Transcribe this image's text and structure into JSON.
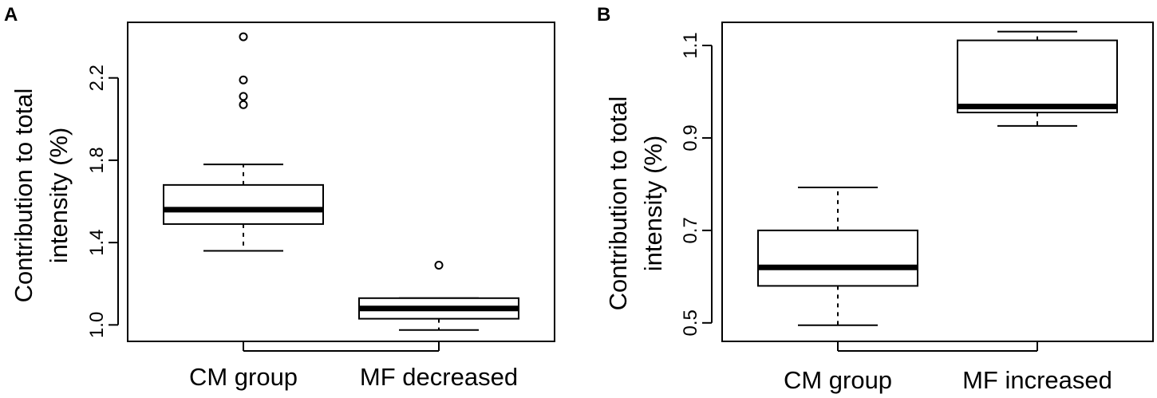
{
  "chart_data": [
    {
      "panel": "A",
      "type": "box",
      "ylabel_lines": [
        "Contribution to total",
        "intensity (%)"
      ],
      "categories": [
        "CM group",
        "MF decreased"
      ],
      "yticks": [
        1.0,
        1.4,
        1.8,
        2.2
      ],
      "ytick_labels": [
        "1.0",
        "1.4",
        "1.8",
        "2.2"
      ],
      "ylim": [
        0.92,
        2.47
      ],
      "boxes": [
        {
          "category": "CM group",
          "whisker_low": 1.36,
          "q1": 1.49,
          "median": 1.56,
          "q3": 1.68,
          "whisker_high": 1.78,
          "outliers": [
            2.07,
            2.11,
            2.19,
            2.4
          ]
        },
        {
          "category": "MF decreased",
          "whisker_low": 0.975,
          "q1": 1.03,
          "median": 1.08,
          "q3": 1.13,
          "whisker_high": 1.13,
          "outliers": [
            1.29
          ]
        }
      ]
    },
    {
      "panel": "B",
      "type": "box",
      "ylabel_lines": [
        "Contribution to total",
        "intensity (%)"
      ],
      "categories": [
        "CM group",
        "MF increased"
      ],
      "yticks": [
        0.5,
        0.7,
        0.9,
        1.1
      ],
      "ytick_labels": [
        "0.5",
        "0.7",
        "0.9",
        "1.1"
      ],
      "ylim": [
        0.46,
        1.15
      ],
      "boxes": [
        {
          "category": "CM group",
          "whisker_low": 0.495,
          "q1": 0.58,
          "median": 0.62,
          "q3": 0.7,
          "whisker_high": 0.793,
          "outliers": []
        },
        {
          "category": "MF increased",
          "whisker_low": 0.926,
          "q1": 0.955,
          "median": 0.968,
          "q3": 1.111,
          "whisker_high": 1.13,
          "outliers": []
        }
      ]
    }
  ]
}
